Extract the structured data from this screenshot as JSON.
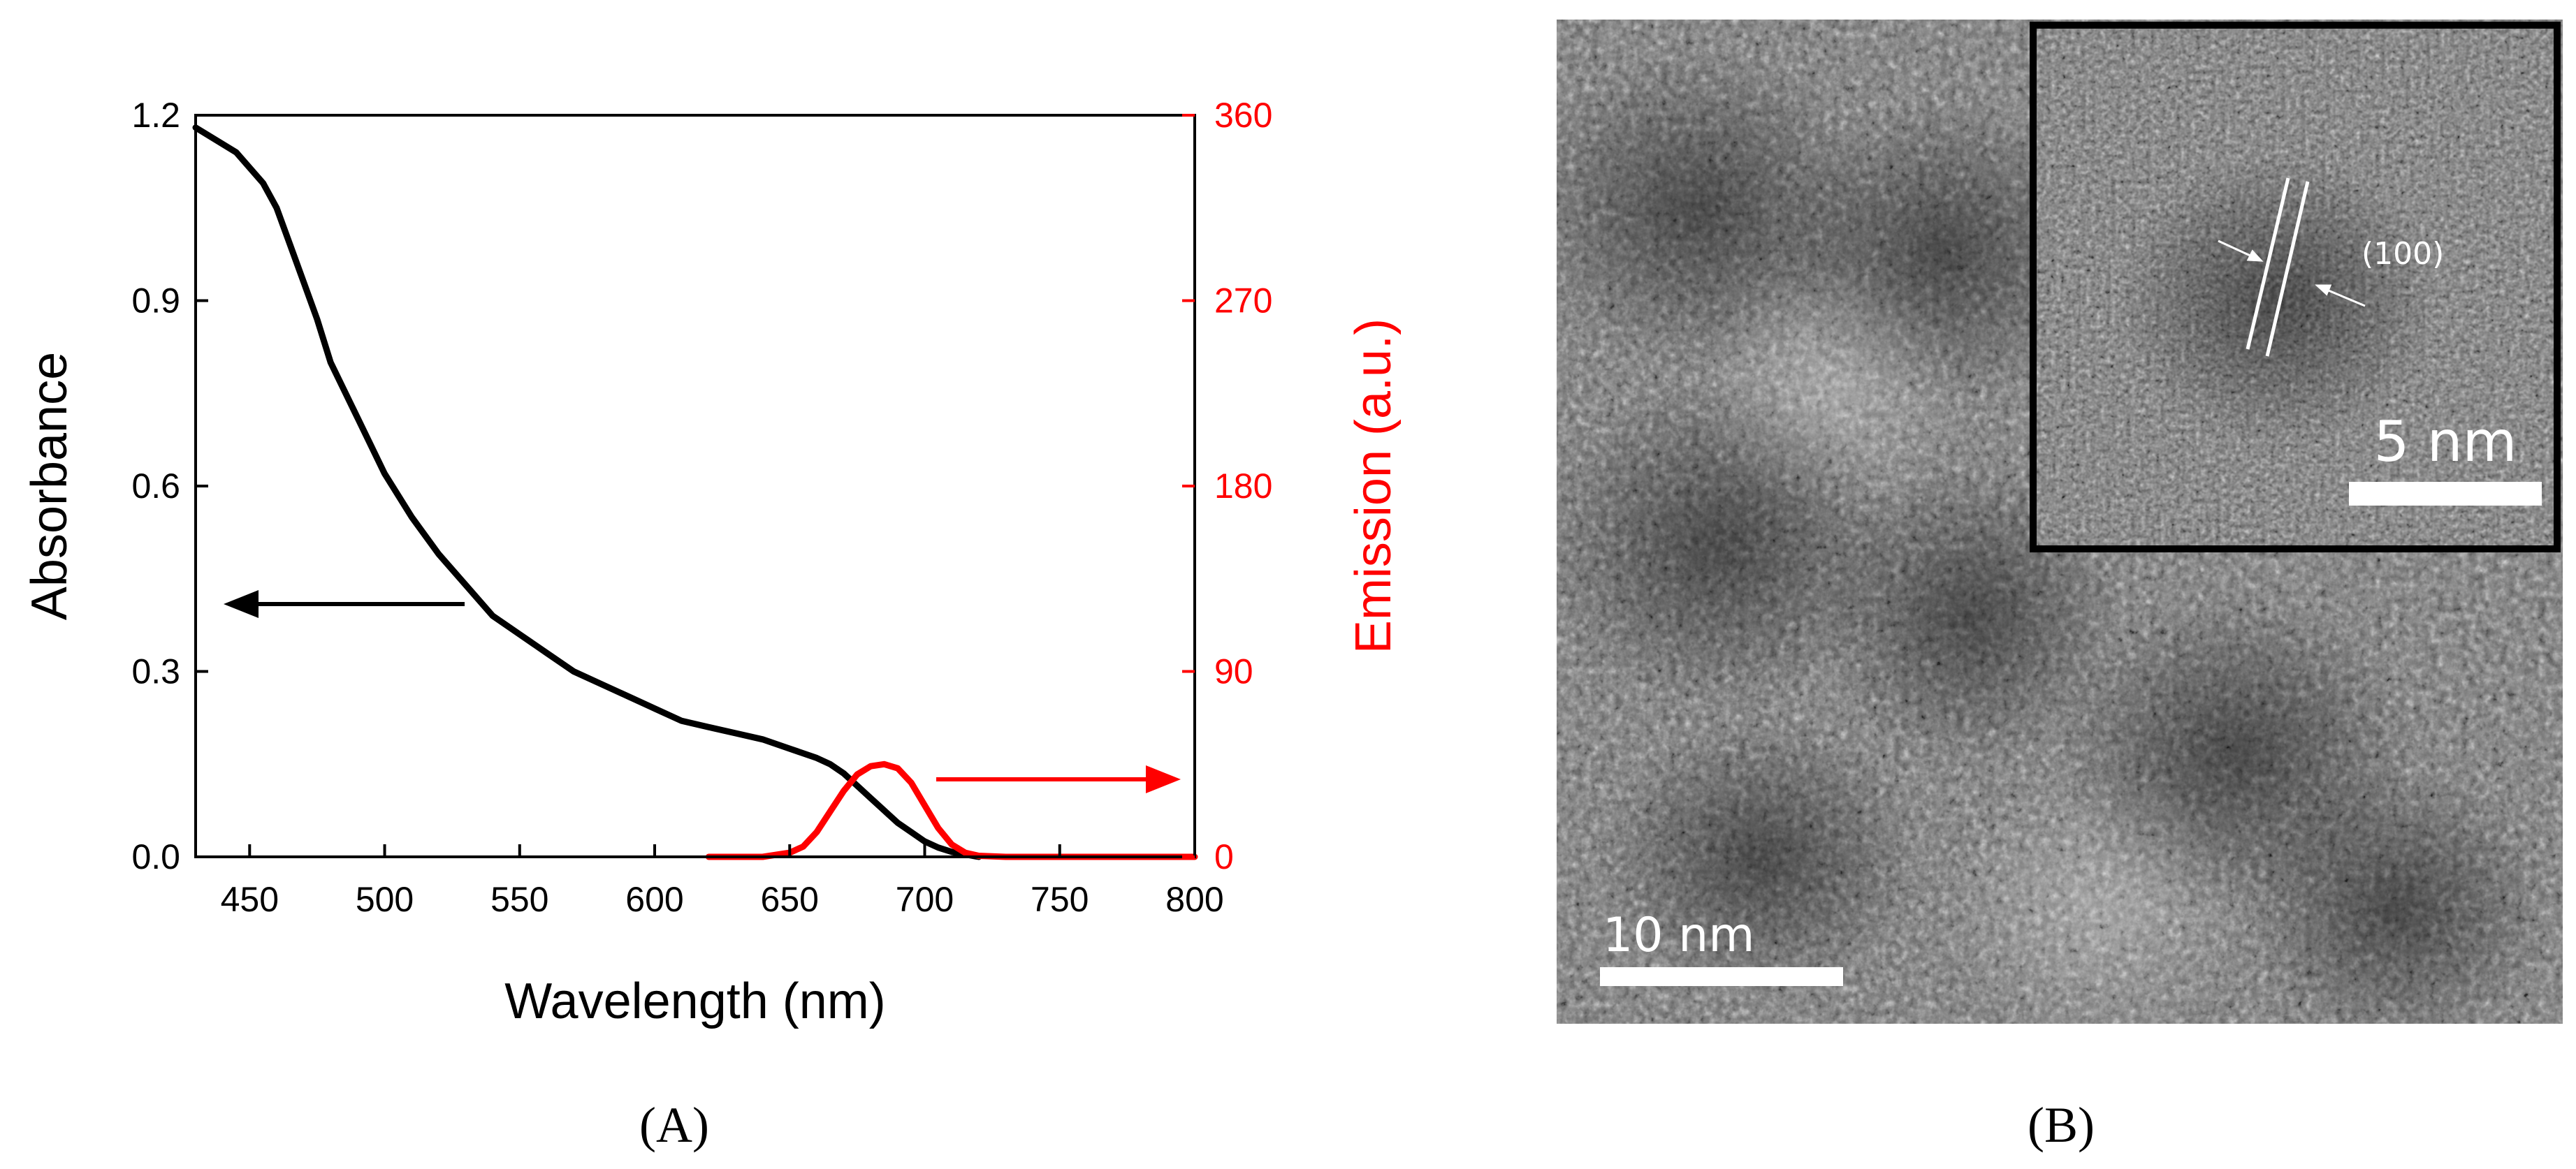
{
  "chart_data": [
    {
      "type": "line",
      "panel_label": "(A)",
      "xlabel": "Wavelength (nm)",
      "xlim": [
        430,
        800
      ],
      "x_ticks": [
        450,
        500,
        550,
        600,
        650,
        700,
        750,
        800
      ],
      "x_tick_labels": [
        "450",
        "500",
        "550",
        "600",
        "650",
        "700",
        "750",
        "800"
      ],
      "ylabel_left": "Absorbance",
      "ylim_left": [
        0,
        1.2
      ],
      "y_ticks_left": [
        "0.0",
        "0.3",
        "0.6",
        "0.9",
        "1.2"
      ],
      "ylabel_right": "Emission (a.u.)",
      "ylim_right": [
        0,
        360
      ],
      "y_ticks_right": [
        "0",
        "90",
        "180",
        "270",
        "360"
      ],
      "grid": false,
      "colors": {
        "absorbance": "#000000",
        "emission": "#ff0000"
      },
      "series": [
        {
          "axis": "left",
          "color": "#000000",
          "x": [
            430,
            445,
            455,
            460,
            465,
            470,
            475,
            480,
            490,
            500,
            510,
            520,
            530,
            540,
            550,
            560,
            570,
            580,
            590,
            600,
            610,
            620,
            630,
            640,
            650,
            660,
            665,
            670,
            675,
            680,
            685,
            690,
            695,
            700,
            705,
            710,
            715,
            720
          ],
          "values": [
            1.18,
            1.14,
            1.09,
            1.05,
            0.99,
            0.93,
            0.87,
            0.8,
            0.71,
            0.62,
            0.55,
            0.49,
            0.44,
            0.39,
            0.36,
            0.33,
            0.3,
            0.28,
            0.26,
            0.24,
            0.22,
            0.21,
            0.2,
            0.19,
            0.175,
            0.16,
            0.15,
            0.135,
            0.115,
            0.095,
            0.075,
            0.055,
            0.04,
            0.025,
            0.015,
            0.008,
            0.004,
            0.0
          ]
        },
        {
          "axis": "right",
          "color": "#ff0000",
          "x": [
            620,
            640,
            650,
            655,
            660,
            665,
            670,
            675,
            680,
            685,
            690,
            695,
            700,
            705,
            710,
            715,
            720,
            730,
            760,
            800
          ],
          "values": [
            0,
            0,
            2,
            5,
            12,
            22,
            32,
            40,
            44,
            45,
            43,
            36,
            25,
            14,
            6,
            2,
            0.5,
            0,
            0,
            0
          ]
        }
      ],
      "arrows": [
        {
          "series": "absorbance",
          "points_to": "left axis"
        },
        {
          "series": "emission",
          "points_to": "right axis"
        }
      ]
    }
  ],
  "image_panel": {
    "panel_label": "(B)",
    "scale_bar_label": "10 nm",
    "inset_scale_bar_label": "5 nm",
    "inset_annotation": "(100)"
  }
}
